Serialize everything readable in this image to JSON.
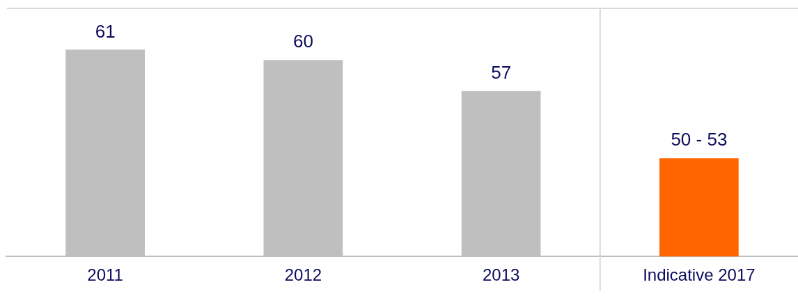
{
  "chart_data": {
    "type": "bar",
    "categories": [
      "2011",
      "2012",
      "2013",
      "Indicative 2017"
    ],
    "values": [
      61,
      60,
      57,
      50.5
    ],
    "colors": [
      "#bfbfbf",
      "#bfbfbf",
      "#bfbfbf",
      "#ff6600"
    ],
    "value_labels": [
      "61",
      "60",
      "57",
      "50 - 53"
    ],
    "ylim": [
      41,
      65
    ],
    "grid": false,
    "legend": false
  }
}
